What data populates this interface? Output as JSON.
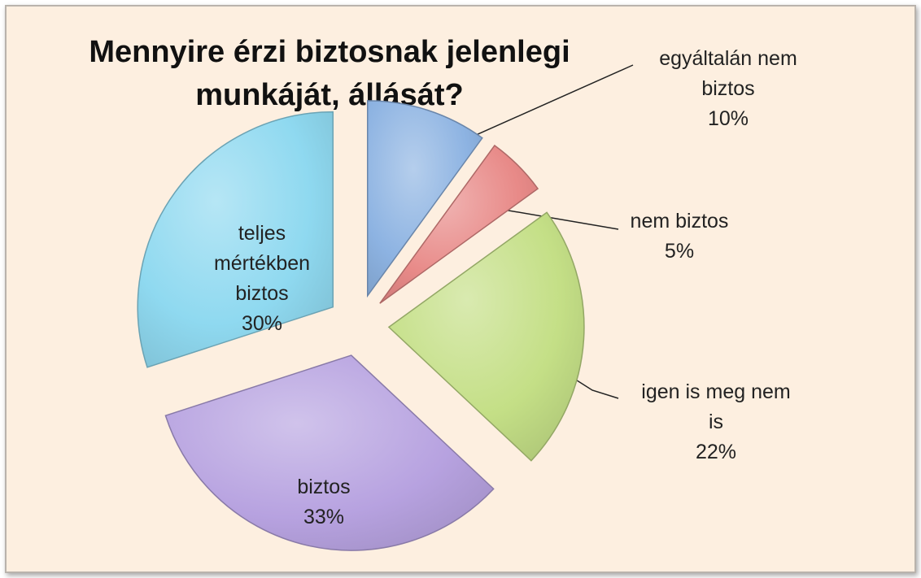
{
  "chart_data": {
    "type": "pie",
    "title_lines": [
      "Mennyire érzi biztosnak jelenlegi",
      "munkáját, állását?"
    ],
    "slices": [
      {
        "label_lines": [
          "egyáltalán nem",
          "biztos"
        ],
        "value": 10,
        "value_label": "10%",
        "color": "#8db3e2"
      },
      {
        "label_lines": [
          "nem biztos"
        ],
        "value": 5,
        "value_label": "5%",
        "color": "#e88a88"
      },
      {
        "label_lines": [
          "igen is meg nem",
          "is"
        ],
        "value": 22,
        "value_label": "22%",
        "color": "#c4df86"
      },
      {
        "label_lines": [
          "biztos"
        ],
        "value": 33,
        "value_label": "33%",
        "color": "#b7a2e0"
      },
      {
        "label_lines": [
          "teljes",
          "mértékben",
          "biztos"
        ],
        "value": 30,
        "value_label": "30%",
        "color": "#8fd9f0"
      }
    ],
    "legend": "none"
  }
}
